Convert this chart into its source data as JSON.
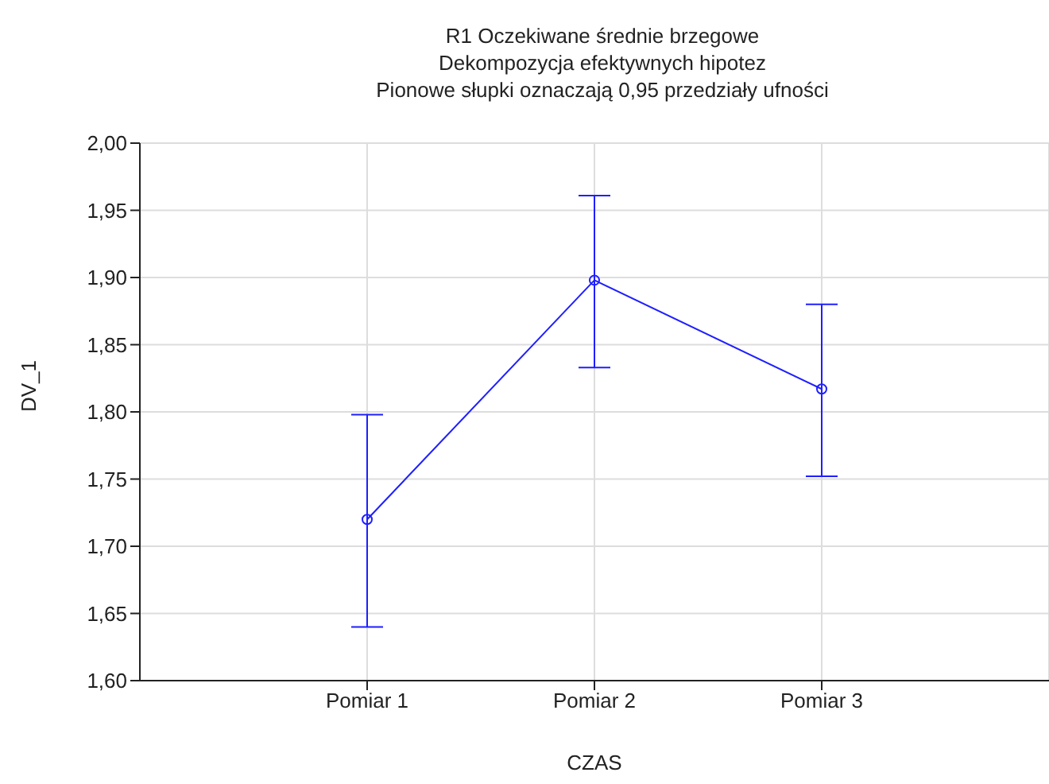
{
  "chart_data": {
    "type": "line",
    "title": "R1 Oczekiwane średnie brzegowe",
    "subtitle": "Dekompozycja efektywnych hipotez",
    "annotations": [
      "Pionowe słupki oznaczają 0,95 przedziały ufności"
    ],
    "xlabel": "CZAS",
    "ylabel": "DV_1",
    "categories": [
      "Pomiar 1",
      "Pomiar 2",
      "Pomiar 3"
    ],
    "series": [
      {
        "color": "#1f1fff",
        "values": [
          1.72,
          1.898,
          1.817
        ],
        "errors": [
          [
            1.64,
            1.798
          ],
          [
            1.833,
            1.961
          ],
          [
            1.752,
            1.88
          ]
        ]
      }
    ],
    "ylim": [
      1.6,
      2.0
    ],
    "yticks": [
      {
        "value": 1.6,
        "label": "1,60"
      },
      {
        "value": 1.65,
        "label": "1,65"
      },
      {
        "value": 1.7,
        "label": "1,70"
      },
      {
        "value": 1.75,
        "label": "1,75"
      },
      {
        "value": 1.8,
        "label": "1,80"
      },
      {
        "value": 1.85,
        "label": "1,85"
      },
      {
        "value": 1.9,
        "label": "1,90"
      },
      {
        "value": 1.95,
        "label": "1,95"
      },
      {
        "value": 2.0,
        "label": "2,00"
      }
    ],
    "grid": true,
    "marker": "circle",
    "line_style": "solid",
    "legend": false
  }
}
